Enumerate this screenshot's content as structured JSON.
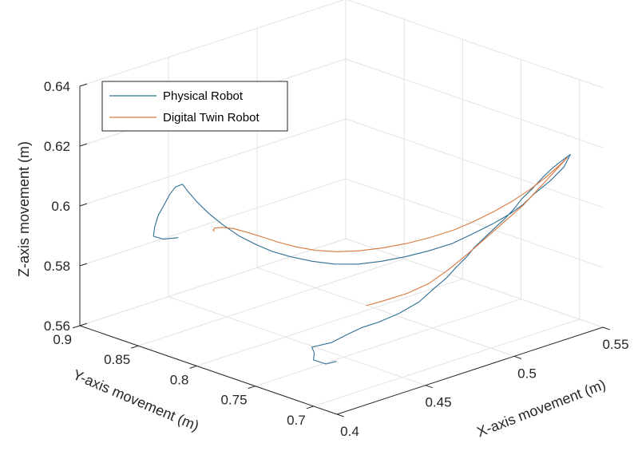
{
  "chart_data": {
    "type": "line",
    "dimensions": 3,
    "title": "",
    "xlabel": "X-axis movement (m)",
    "ylabel": "Y-axis movement (m)",
    "zlabel": "Z-axis movement (m)",
    "xlim": [
      0.4,
      0.55
    ],
    "ylim": [
      0.68,
      0.9
    ],
    "zlim": [
      0.56,
      0.64
    ],
    "x_ticks": [
      "0.4",
      "0.45",
      "0.5",
      "0.55"
    ],
    "y_ticks": [
      "0.7",
      "0.75",
      "0.8",
      "0.85",
      "0.9"
    ],
    "z_ticks": [
      "0.56",
      "0.58",
      "0.6",
      "0.62",
      "0.64"
    ],
    "grid": true,
    "legend_position": "top-left",
    "series": [
      {
        "name": "Physical Robot",
        "color": "#2e6f93",
        "points": [
          [
            0.438,
            0.738,
            0.5625
          ],
          [
            0.43,
            0.735,
            0.5636
          ],
          [
            0.425,
            0.738,
            0.5655
          ],
          [
            0.43,
            0.745,
            0.566
          ],
          [
            0.432,
            0.75,
            0.5668
          ],
          [
            0.441,
            0.747,
            0.567
          ],
          [
            0.448,
            0.745,
            0.5684
          ],
          [
            0.455,
            0.742,
            0.57
          ],
          [
            0.462,
            0.738,
            0.571
          ],
          [
            0.47,
            0.733,
            0.573
          ],
          [
            0.478,
            0.728,
            0.576
          ],
          [
            0.484,
            0.724,
            0.58
          ],
          [
            0.488,
            0.72,
            0.583
          ],
          [
            0.492,
            0.718,
            0.586
          ],
          [
            0.497,
            0.716,
            0.589
          ],
          [
            0.499,
            0.713,
            0.592
          ],
          [
            0.503,
            0.71,
            0.595
          ],
          [
            0.507,
            0.706,
            0.5985
          ],
          [
            0.51,
            0.703,
            0.601
          ],
          [
            0.513,
            0.7,
            0.604
          ],
          [
            0.516,
            0.698,
            0.607
          ],
          [
            0.52,
            0.695,
            0.61
          ],
          [
            0.524,
            0.692,
            0.6135
          ],
          [
            0.528,
            0.69,
            0.616
          ],
          [
            0.532,
            0.688,
            0.618
          ],
          [
            0.535,
            0.685,
            0.62
          ],
          [
            0.53,
            0.683,
            0.617
          ],
          [
            0.524,
            0.686,
            0.613
          ],
          [
            0.518,
            0.69,
            0.6095
          ],
          [
            0.514,
            0.694,
            0.606
          ],
          [
            0.51,
            0.699,
            0.603
          ],
          [
            0.504,
            0.705,
            0.6
          ],
          [
            0.497,
            0.712,
            0.597
          ],
          [
            0.49,
            0.718,
            0.5945
          ],
          [
            0.482,
            0.726,
            0.5925
          ],
          [
            0.474,
            0.734,
            0.591
          ],
          [
            0.466,
            0.742,
            0.59
          ],
          [
            0.458,
            0.75,
            0.5895
          ],
          [
            0.45,
            0.758,
            0.59
          ],
          [
            0.443,
            0.766,
            0.5912
          ],
          [
            0.436,
            0.774,
            0.593
          ],
          [
            0.43,
            0.781,
            0.595
          ],
          [
            0.425,
            0.788,
            0.5975
          ],
          [
            0.421,
            0.796,
            0.6
          ],
          [
            0.418,
            0.805,
            0.603
          ],
          [
            0.416,
            0.814,
            0.606
          ],
          [
            0.415,
            0.823,
            0.609
          ],
          [
            0.416,
            0.832,
            0.611
          ],
          [
            0.419,
            0.841,
            0.6115
          ],
          [
            0.421,
            0.85,
            0.609
          ],
          [
            0.423,
            0.858,
            0.605
          ],
          [
            0.425,
            0.866,
            0.6
          ],
          [
            0.427,
            0.874,
            0.595
          ],
          [
            0.429,
            0.88,
            0.59
          ],
          [
            0.431,
            0.884,
            0.586
          ],
          [
            0.434,
            0.88,
            0.585
          ],
          [
            0.437,
            0.872,
            0.586
          ]
        ]
      },
      {
        "name": "Digital Twin Robot",
        "color": "#d9773f",
        "points": [
          [
            0.462,
            0.749,
            0.575
          ],
          [
            0.47,
            0.744,
            0.576
          ],
          [
            0.478,
            0.738,
            0.5775
          ],
          [
            0.486,
            0.732,
            0.58
          ],
          [
            0.493,
            0.726,
            0.584
          ],
          [
            0.499,
            0.721,
            0.588
          ],
          [
            0.504,
            0.716,
            0.592
          ],
          [
            0.509,
            0.711,
            0.596
          ],
          [
            0.514,
            0.706,
            0.6
          ],
          [
            0.519,
            0.701,
            0.604
          ],
          [
            0.523,
            0.697,
            0.608
          ],
          [
            0.527,
            0.693,
            0.612
          ],
          [
            0.531,
            0.689,
            0.616
          ],
          [
            0.534,
            0.686,
            0.619
          ],
          [
            0.53,
            0.688,
            0.6165
          ],
          [
            0.525,
            0.692,
            0.613
          ],
          [
            0.52,
            0.697,
            0.6095
          ],
          [
            0.514,
            0.703,
            0.606
          ],
          [
            0.508,
            0.709,
            0.603
          ],
          [
            0.501,
            0.716,
            0.6
          ],
          [
            0.494,
            0.723,
            0.5975
          ],
          [
            0.486,
            0.731,
            0.5955
          ],
          [
            0.478,
            0.739,
            0.594
          ],
          [
            0.47,
            0.747,
            0.593
          ],
          [
            0.462,
            0.755,
            0.5925
          ],
          [
            0.455,
            0.763,
            0.5925
          ],
          [
            0.448,
            0.771,
            0.5932
          ],
          [
            0.442,
            0.779,
            0.5945
          ],
          [
            0.437,
            0.787,
            0.596
          ],
          [
            0.433,
            0.795,
            0.5975
          ],
          [
            0.43,
            0.803,
            0.5985
          ],
          [
            0.428,
            0.811,
            0.599
          ],
          [
            0.427,
            0.819,
            0.5985
          ],
          [
            0.428,
            0.827,
            0.597
          ],
          [
            0.431,
            0.833,
            0.595
          ],
          [
            0.435,
            0.838,
            0.593
          ]
        ]
      }
    ]
  }
}
